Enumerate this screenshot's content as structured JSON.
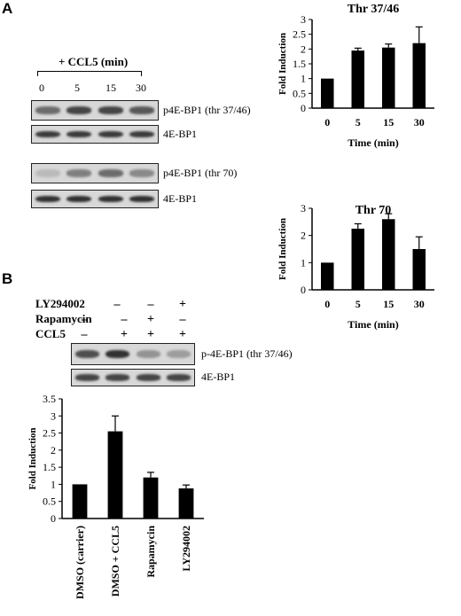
{
  "panels": {
    "a": "A",
    "b": "B"
  },
  "panelA": {
    "treatment": "+ CCL5 (min)",
    "lanes": [
      "0",
      "5",
      "15",
      "30"
    ],
    "blots": [
      {
        "label": "p4E-BP1 (thr 37/46)",
        "intensity": [
          0.55,
          0.75,
          0.75,
          0.65
        ]
      },
      {
        "label": "4E-BP1",
        "intensity": [
          0.8,
          0.8,
          0.8,
          0.8
        ]
      },
      {
        "label": "p4E-BP1 (thr 70)",
        "intensity": [
          0.15,
          0.45,
          0.55,
          0.4
        ]
      },
      {
        "label": "4E-BP1",
        "intensity": [
          0.85,
          0.85,
          0.85,
          0.85
        ]
      }
    ]
  },
  "panelB": {
    "rows": [
      {
        "label": "LY294002",
        "signs": [
          "–",
          "–",
          "–",
          "+"
        ]
      },
      {
        "label": "Rapamycin",
        "signs": [
          "–",
          "–",
          "+",
          "–"
        ]
      },
      {
        "label": "CCL5",
        "signs": [
          "–",
          "+",
          "+",
          "+"
        ]
      }
    ],
    "blots": [
      {
        "label": "p-4E-BP1 (thr 37/46)",
        "intensity": [
          0.7,
          0.85,
          0.35,
          0.3
        ]
      },
      {
        "label": "4E-BP1",
        "intensity": [
          0.75,
          0.75,
          0.75,
          0.75
        ]
      }
    ]
  },
  "chart_data": [
    {
      "type": "bar",
      "title": "Thr 37/46",
      "xlabel": "Time (min)",
      "ylabel": "Fold Induction",
      "categories": [
        "0",
        "5",
        "15",
        "30"
      ],
      "values": [
        1.0,
        1.95,
        2.05,
        2.2
      ],
      "errors": [
        0,
        0.08,
        0.12,
        0.55
      ],
      "ylim": [
        0,
        3
      ],
      "yticks": [
        "0",
        "0.5",
        "1",
        "1.5",
        "2",
        "2.5",
        "3"
      ]
    },
    {
      "type": "bar",
      "title": "Thr 70",
      "xlabel": "Time (min)",
      "ylabel": "Fold Induction",
      "categories": [
        "0",
        "5",
        "15",
        "30"
      ],
      "values": [
        1.0,
        2.25,
        2.6,
        1.5
      ],
      "errors": [
        0,
        0.18,
        0.2,
        0.45
      ],
      "ylim": [
        0,
        3
      ],
      "yticks": [
        "0",
        "1",
        "2",
        "3"
      ]
    },
    {
      "type": "bar",
      "title": "",
      "xlabel": "",
      "ylabel": "Fold Induction",
      "categories": [
        "DMSO (carrier)",
        "DMSO + CCL5",
        "Rapamycin",
        "LY294002"
      ],
      "values": [
        1.0,
        2.55,
        1.2,
        0.88
      ],
      "errors": [
        0,
        0.45,
        0.15,
        0.1
      ],
      "ylim": [
        0,
        3.5
      ],
      "yticks": [
        "0",
        "0.5",
        "1",
        "1.5",
        "2",
        "2.5",
        "3",
        "3.5"
      ]
    }
  ]
}
